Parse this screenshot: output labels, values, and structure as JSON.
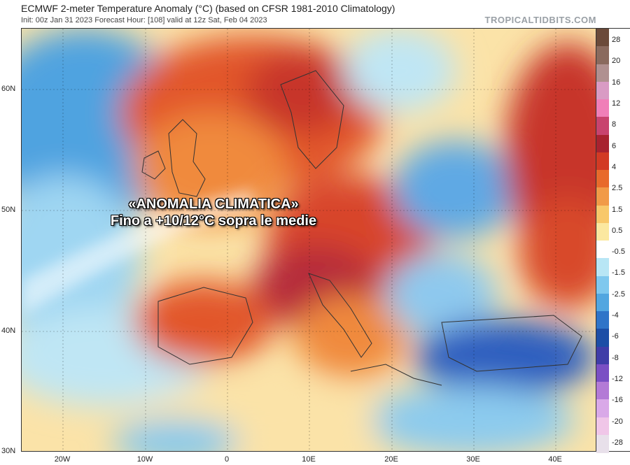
{
  "header": {
    "title": "ECMWF 2-meter Temperature Anomaly (°C) (based on CFSR 1981-2010 Climatology)",
    "subtitle": "Init: 00z Jan 31 2023   Forecast Hour: [108]   valid at 12z Sat, Feb 04 2023",
    "brand": "TROPICALTIDBITS.COM"
  },
  "overlay": {
    "line1": "«ANOMALIA CLIMATICA»",
    "line2": "Fino a +10/12°C sopra le medie"
  },
  "axes": {
    "lat_labels": [
      "60N",
      "50N",
      "40N",
      "30N"
    ],
    "lon_labels": [
      "20W",
      "10W",
      "0",
      "10E",
      "20E",
      "30E",
      "40E"
    ]
  },
  "colorbar": {
    "labels": [
      "28",
      "20",
      "16",
      "12",
      "8",
      "6",
      "4",
      "2.5",
      "1.5",
      "0.5",
      "-0.5",
      "-1.5",
      "-2.5",
      "-4",
      "-6",
      "-8",
      "-12",
      "-16",
      "-20",
      "-28"
    ],
    "colors": [
      "#6b4a3a",
      "#8a6a5e",
      "#b09090",
      "#d99bc4",
      "#f07fb8",
      "#c8436e",
      "#a8222f",
      "#d23a24",
      "#e86a2b",
      "#f19a47",
      "#f8c86a",
      "#fbe8a0",
      "#ffffff",
      "#b8e6f5",
      "#7fc8ee",
      "#52a6e0",
      "#2f74c8",
      "#1c4ea6",
      "#3f3da8",
      "#7a4fc4",
      "#b37ad6",
      "#d9a9e8",
      "#f0c6e8",
      "#e8e0ea"
    ]
  }
}
